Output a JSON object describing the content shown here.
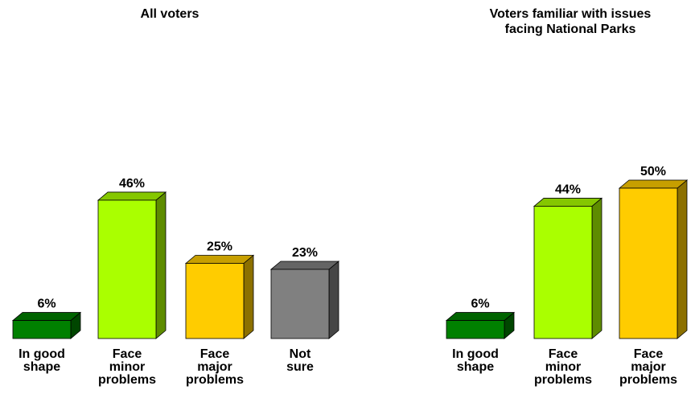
{
  "chart_data": [
    {
      "type": "bar",
      "title": "All voters",
      "categories": [
        "In good shape",
        "Face minor problems",
        "Face major problems",
        "Not sure"
      ],
      "category_lines": [
        [
          "In good",
          "shape"
        ],
        [
          "Face",
          "minor",
          "problems"
        ],
        [
          "Face",
          "major",
          "problems"
        ],
        [
          "Not",
          "sure"
        ]
      ],
      "values": [
        6,
        46,
        25,
        23
      ],
      "value_labels": [
        "6%",
        "46%",
        "25%",
        "23%"
      ],
      "colors": [
        "#008000",
        "#aaff00",
        "#ffcc00",
        "#808080"
      ],
      "unit": "%",
      "grid": false,
      "legend": "none"
    },
    {
      "type": "bar",
      "title": "Voters familiar with issues facing National Parks",
      "title_lines": [
        "Voters familiar with issues",
        "facing National Parks"
      ],
      "categories": [
        "In good shape",
        "Face minor problems",
        "Face major problems"
      ],
      "category_lines": [
        [
          "In good",
          "shape"
        ],
        [
          "Face",
          "minor",
          "problems"
        ],
        [
          "Face",
          "major",
          "problems"
        ]
      ],
      "values": [
        6,
        44,
        50
      ],
      "value_labels": [
        "6%",
        "44%",
        "50%"
      ],
      "colors": [
        "#008000",
        "#aaff00",
        "#ffcc00"
      ],
      "unit": "%",
      "grid": false,
      "legend": "none"
    }
  ]
}
